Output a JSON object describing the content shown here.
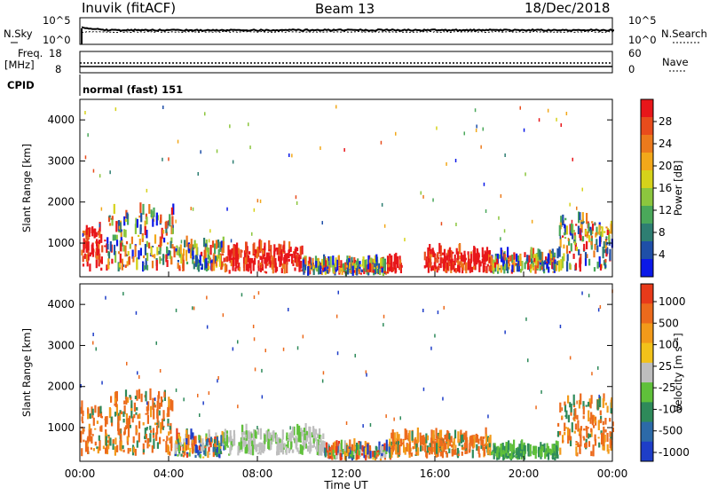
{
  "header": {
    "station": "Inuvik (fitACF)",
    "beam": "Beam 13",
    "date": "18/Dec/2018"
  },
  "top_panels": {
    "nsky_label": "N.Sky",
    "nsky_ticks": [
      "10^5",
      "10^0"
    ],
    "nsearch_label": "N.Search",
    "nsearch_ticks": [
      "10^5",
      "10^0"
    ],
    "freq_label_1": "Freq.",
    "freq_label_2": "[MHz]",
    "freq_ticks": [
      "18",
      "8"
    ],
    "nave_label": "Nave",
    "nave_ticks": [
      "60",
      "0"
    ],
    "cpid_label": "CPID",
    "cpid_text": "normal (fast) 151"
  },
  "chart_data": [
    {
      "type": "heatmap",
      "title": "",
      "xlabel": "Time UT",
      "ylabel": "Slant Range [km]",
      "x_ticks": [
        "00:00",
        "04:00",
        "08:00",
        "12:00",
        "16:00",
        "20:00",
        "00:00"
      ],
      "y_ticks": [
        1000,
        2000,
        3000,
        4000
      ],
      "ylim": [
        180,
        4500
      ],
      "xlim_hours": [
        0,
        24
      ],
      "colorbar": {
        "label": "Power [dB]",
        "ticks": [
          "4",
          "8",
          "12",
          "16",
          "20",
          "24",
          "28"
        ],
        "colors": [
          "#0b19e8",
          "#1f4fa8",
          "#2e7e72",
          "#4aa85a",
          "#8cc63e",
          "#d6d21a",
          "#f2a81a",
          "#ec7a1c",
          "#e84c1c",
          "#e8161a"
        ]
      },
      "regions": [
        {
          "t": [
            0.0,
            1.2
          ],
          "r": [
            300,
            1400
          ],
          "level": "high"
        },
        {
          "t": [
            1.2,
            4.2
          ],
          "r": [
            300,
            1900
          ],
          "level": "mixed"
        },
        {
          "t": [
            4.2,
            6.5
          ],
          "r": [
            300,
            1000
          ],
          "level": "mixed"
        },
        {
          "t": [
            6.5,
            10.0
          ],
          "r": [
            250,
            900
          ],
          "level": "high"
        },
        {
          "t": [
            10.0,
            13.8
          ],
          "r": [
            200,
            500
          ],
          "level": "mixed"
        },
        {
          "t": [
            13.8,
            14.5
          ],
          "r": [
            250,
            550
          ],
          "level": "high"
        },
        {
          "t": [
            15.5,
            18.5
          ],
          "r": [
            250,
            800
          ],
          "level": "high"
        },
        {
          "t": [
            18.5,
            21.5
          ],
          "r": [
            250,
            700
          ],
          "level": "mixed"
        },
        {
          "t": [
            21.5,
            24.0
          ],
          "r": [
            300,
            1700
          ],
          "level": "mixed"
        }
      ]
    },
    {
      "type": "heatmap",
      "title": "",
      "xlabel": "Time UT",
      "ylabel": "Slant Range [km]",
      "x_ticks": [
        "00:00",
        "04:00",
        "08:00",
        "12:00",
        "16:00",
        "20:00",
        "00:00"
      ],
      "y_ticks": [
        1000,
        2000,
        3000,
        4000
      ],
      "ylim": [
        180,
        4500
      ],
      "xlim_hours": [
        0,
        24
      ],
      "colorbar": {
        "label": "Velocity [m s⁻¹]",
        "ticks": [
          "1000",
          "500",
          "100",
          "25",
          "-25",
          "-100",
          "-500",
          "-1000"
        ],
        "colors": [
          "#1e3ec8",
          "#2c6aa8",
          "#2e8a5a",
          "#5fc03a",
          "#bebebe",
          "#f2c21a",
          "#f29a1a",
          "#ec6a1c",
          "#e83a1a"
        ]
      },
      "regions": [
        {
          "t": [
            0.0,
            1.2
          ],
          "r": [
            300,
            1500
          ],
          "level": "away"
        },
        {
          "t": [
            1.2,
            4.2
          ],
          "r": [
            300,
            1900
          ],
          "level": "away"
        },
        {
          "t": [
            4.2,
            6.5
          ],
          "r": [
            250,
            800
          ],
          "level": "mixed"
        },
        {
          "t": [
            6.5,
            11.0
          ],
          "r": [
            300,
            900
          ],
          "level": "ground"
        },
        {
          "t": [
            11.0,
            14.0
          ],
          "r": [
            200,
            500
          ],
          "level": "mixed"
        },
        {
          "t": [
            14.0,
            18.5
          ],
          "r": [
            250,
            800
          ],
          "level": "away"
        },
        {
          "t": [
            18.5,
            21.5
          ],
          "r": [
            200,
            500
          ],
          "level": "toward"
        },
        {
          "t": [
            21.5,
            24.0
          ],
          "r": [
            300,
            1800
          ],
          "level": "away"
        }
      ]
    }
  ]
}
